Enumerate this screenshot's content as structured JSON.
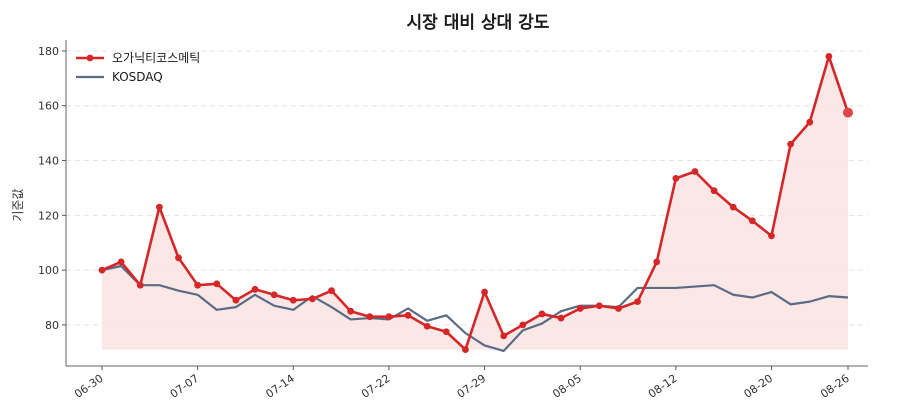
{
  "chart_data": {
    "type": "line",
    "title": "시장 대비 상대 강도",
    "xlabel": "",
    "ylabel": "기준값",
    "ylim": [
      65,
      184
    ],
    "yticks": [
      80,
      100,
      120,
      140,
      160,
      180
    ],
    "xticks": [
      "06-30",
      "07-07",
      "07-14",
      "07-22",
      "07-29",
      "08-05",
      "08-12",
      "08-20",
      "08-26"
    ],
    "grid": "horizontal dashed",
    "legend": "top-left",
    "colors": {
      "stock": "#d62728",
      "index": "#5a6b85",
      "fill": "#fbe3e3"
    },
    "series": [
      {
        "name": "오가닉티코스메틱",
        "values": [
          100,
          103,
          94.5,
          123,
          104.5,
          94.5,
          95,
          89,
          93,
          91,
          89,
          89.5,
          92.5,
          85,
          83,
          83,
          83.5,
          79.5,
          77.5,
          71,
          92,
          76,
          80,
          84,
          82.5,
          86,
          87,
          86,
          88.5,
          103,
          133.5,
          136,
          129,
          123,
          118,
          112.5,
          146,
          154,
          178,
          157.5
        ]
      },
      {
        "name": "KOSDAQ",
        "values": [
          100,
          101.5,
          94.5,
          94.5,
          92.5,
          91,
          85.5,
          86.5,
          91,
          87,
          85.5,
          90.5,
          86.5,
          82,
          82.5,
          82,
          86,
          81.5,
          83.5,
          77,
          72.5,
          70.5,
          78,
          80.5,
          85,
          87,
          87,
          86.5,
          93.5,
          93.5,
          93.5,
          94,
          94.5,
          91,
          90,
          92,
          87.5,
          88.5,
          90.5,
          90
        ]
      }
    ]
  }
}
